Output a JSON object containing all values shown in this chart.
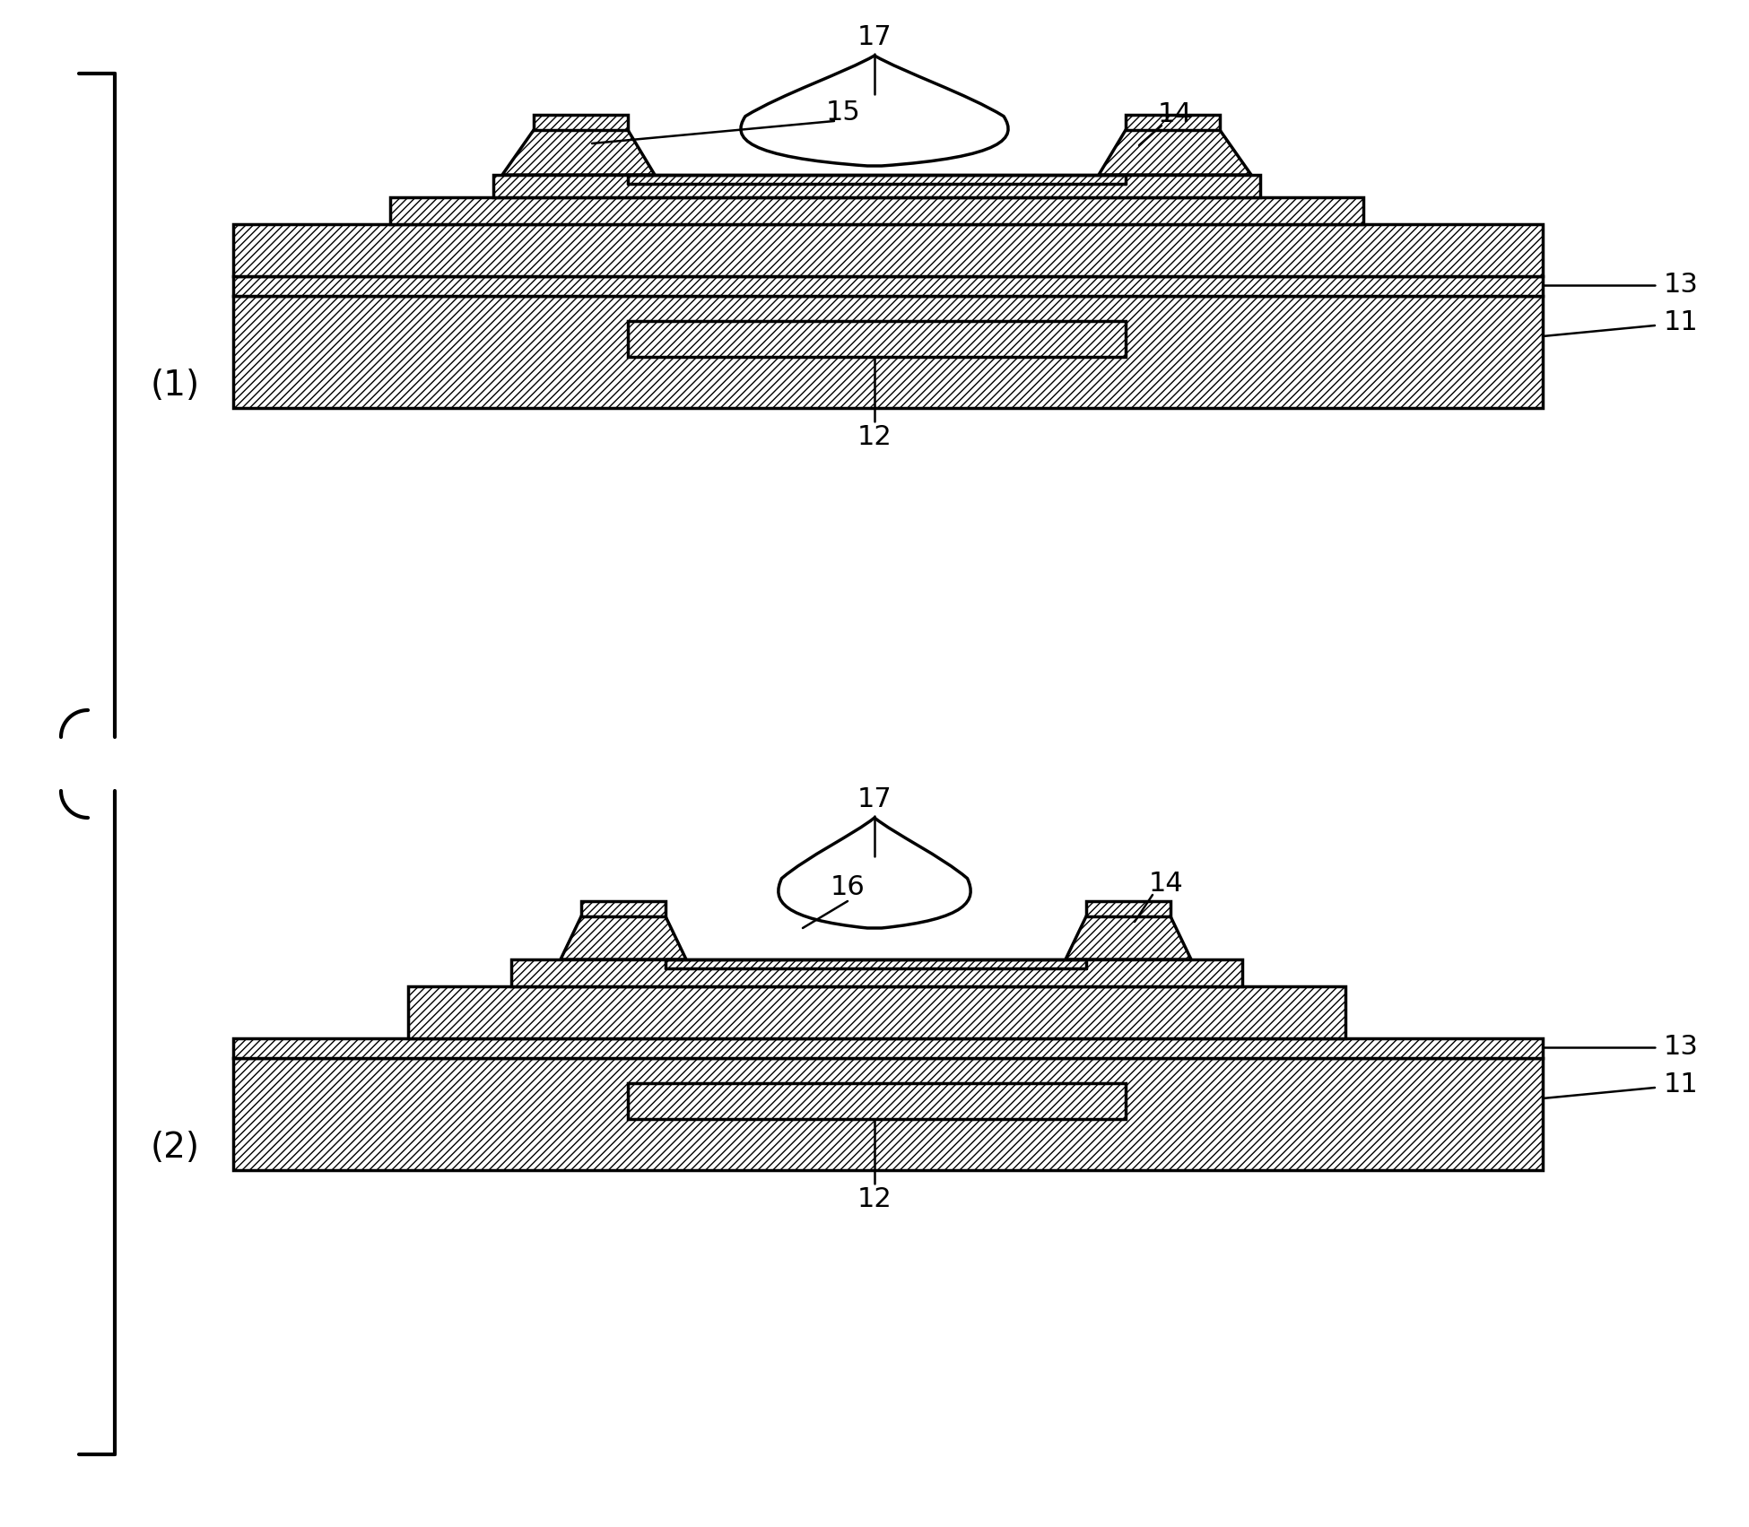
{
  "bg_color": "#ffffff",
  "fig_width": 19.5,
  "fig_height": 17.03,
  "label_fontsize": 22,
  "bracket_label_fontsize": 28
}
